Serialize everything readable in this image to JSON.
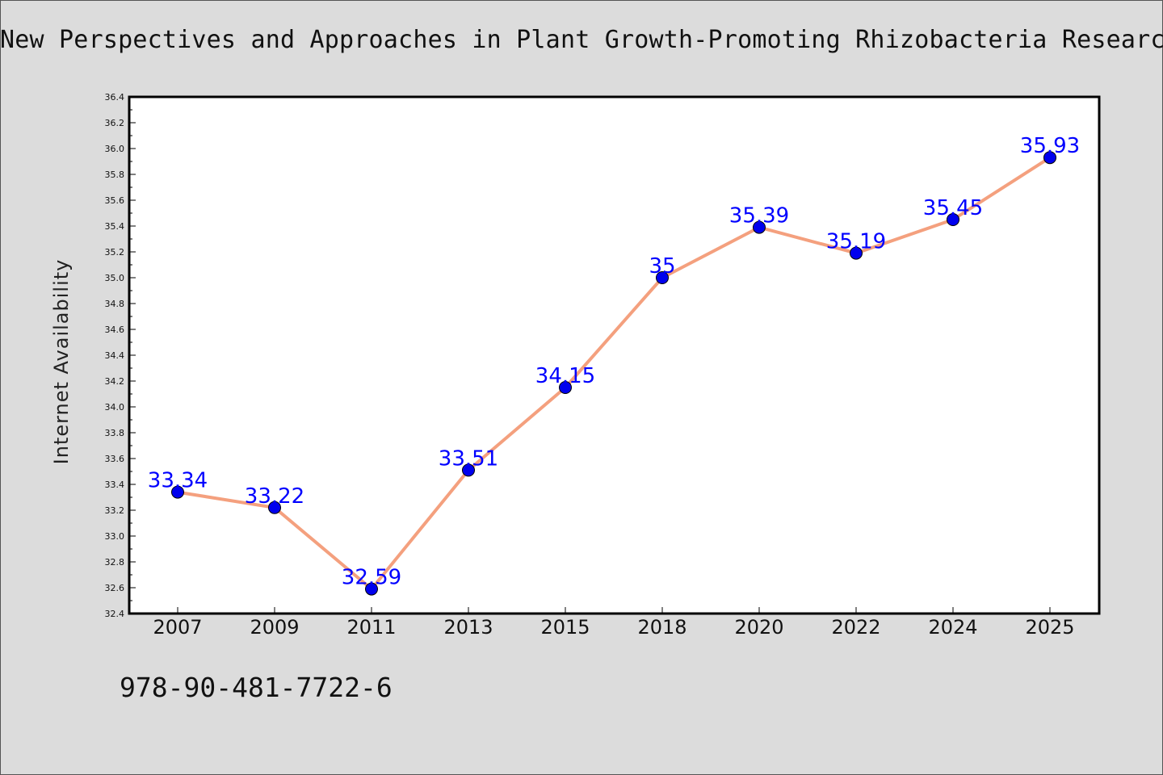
{
  "chart_data": {
    "type": "line",
    "title": "New Perspectives and Approaches in Plant Growth-Promoting Rhizobacteria Research",
    "xlabel": "",
    "ylabel": "Internet Availability",
    "categories": [
      "2007",
      "2009",
      "2011",
      "2013",
      "2015",
      "2018",
      "2020",
      "2022",
      "2024",
      "2025"
    ],
    "series": [
      {
        "values": [
          33.34,
          33.22,
          32.59,
          33.51,
          34.15,
          35.0,
          35.39,
          35.19,
          35.45,
          35.93
        ],
        "labels": [
          "33.34",
          "33.22",
          "32.59",
          "33.51",
          "34.15",
          "35",
          "35.39",
          "35.19",
          "35.45",
          "35.93"
        ]
      }
    ],
    "ylim": [
      32.4,
      36.4
    ],
    "yticks": [
      "32.4",
      "32.6",
      "32.8",
      "33.0",
      "33.2",
      "33.4",
      "33.6",
      "33.8",
      "34.0",
      "34.2",
      "34.4",
      "34.6",
      "34.8",
      "35.0",
      "35.2",
      "35.4",
      "35.6",
      "35.8",
      "36.0",
      "36.2",
      "36.4"
    ],
    "grid": false,
    "legend": "none",
    "colors": {
      "line": "#f4a07e",
      "marker": "#0000ee",
      "data_label": "#0000ff",
      "plot_background": "#ffffff",
      "page_background": "#dcdcdc"
    }
  },
  "footer": {
    "isbn": "978-90-481-7722-6"
  }
}
